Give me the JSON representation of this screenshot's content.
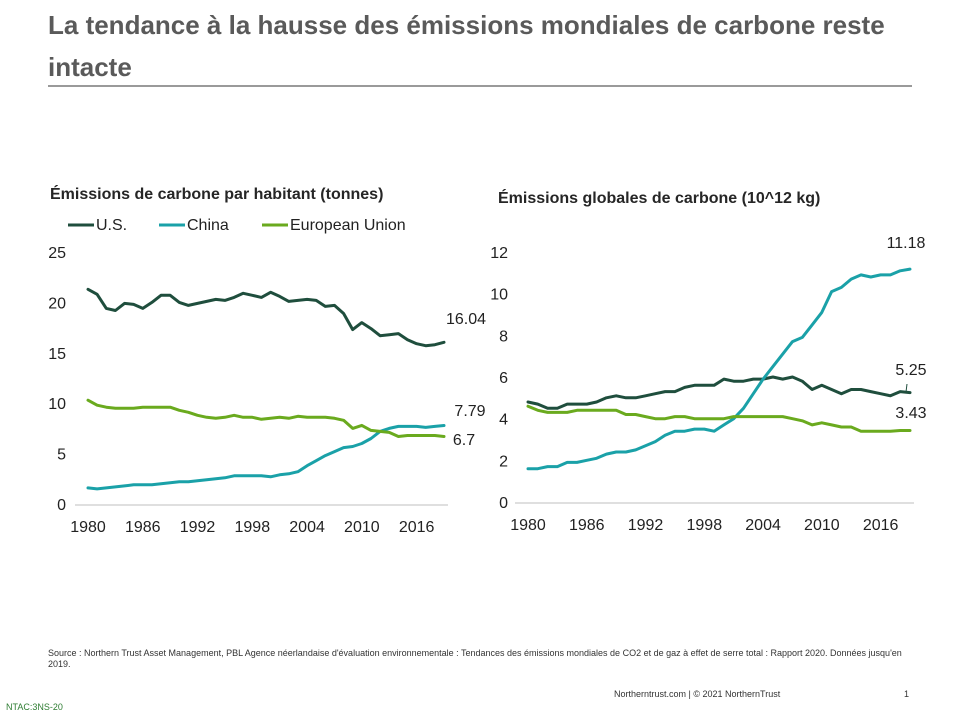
{
  "title": "La tendance à la hausse des émissions mondiales de carbone reste intacte",
  "colors": {
    "us": "#1f4e3d",
    "china": "#1aa1a8",
    "eu": "#6aaa1e"
  },
  "source": "Source : Northern Trust Asset Management, PBL  Agence néerlandaise d'évaluation environnementale : Tendances des émissions mondiales de CO2 et de gaz à effet de serre total : Rapport 2020. Données jusqu'en 2019.",
  "footer": "Northerntrust.com  |  © 2021 NorthernTrust",
  "page_number": "1",
  "code": "NTAC:3NS-20",
  "chart_data": [
    {
      "type": "line",
      "title": "Émissions de carbone par habitant (tonnes)",
      "x": [
        1980,
        1981,
        1982,
        1983,
        1984,
        1985,
        1986,
        1987,
        1988,
        1989,
        1990,
        1991,
        1992,
        1993,
        1994,
        1995,
        1996,
        1997,
        1998,
        1999,
        2000,
        2001,
        2002,
        2003,
        2004,
        2005,
        2006,
        2007,
        2008,
        2009,
        2010,
        2011,
        2012,
        2013,
        2014,
        2015,
        2016,
        2017,
        2018,
        2019
      ],
      "xticks": [
        "1980",
        "1986",
        "1992",
        "1998",
        "2004",
        "2010",
        "2016"
      ],
      "yticks": [
        "0",
        "5",
        "10",
        "15",
        "20",
        "25"
      ],
      "ylim": [
        0,
        25
      ],
      "legend": [
        "U.S.",
        "China",
        "European Union"
      ],
      "series": [
        {
          "name": "U.S.",
          "color": "#1f4e3d",
          "end_label": "16.04",
          "values": [
            21.3,
            20.8,
            19.4,
            19.2,
            19.9,
            19.8,
            19.4,
            20.0,
            20.7,
            20.7,
            20.0,
            19.7,
            19.9,
            20.1,
            20.3,
            20.2,
            20.5,
            20.9,
            20.7,
            20.5,
            21.0,
            20.6,
            20.1,
            20.2,
            20.3,
            20.2,
            19.6,
            19.7,
            18.9,
            17.3,
            18.0,
            17.4,
            16.7,
            16.8,
            16.9,
            16.3,
            15.9,
            15.7,
            15.8,
            16.04
          ]
        },
        {
          "name": "China",
          "color": "#1aa1a8",
          "end_label": "7.79",
          "values": [
            1.6,
            1.5,
            1.6,
            1.7,
            1.8,
            1.9,
            1.9,
            1.9,
            2.0,
            2.1,
            2.2,
            2.2,
            2.3,
            2.4,
            2.5,
            2.6,
            2.8,
            2.8,
            2.8,
            2.8,
            2.7,
            2.9,
            3.0,
            3.2,
            3.8,
            4.3,
            4.8,
            5.2,
            5.6,
            5.7,
            6.0,
            6.5,
            7.2,
            7.5,
            7.7,
            7.7,
            7.7,
            7.6,
            7.7,
            7.79
          ]
        },
        {
          "name": "European Union",
          "color": "#6aaa1e",
          "end_label": "6.7",
          "values": [
            10.3,
            9.8,
            9.6,
            9.5,
            9.5,
            9.5,
            9.6,
            9.6,
            9.6,
            9.6,
            9.3,
            9.1,
            8.8,
            8.6,
            8.5,
            8.6,
            8.8,
            8.6,
            8.6,
            8.4,
            8.5,
            8.6,
            8.5,
            8.7,
            8.6,
            8.6,
            8.6,
            8.5,
            8.3,
            7.5,
            7.8,
            7.3,
            7.2,
            7.1,
            6.7,
            6.8,
            6.8,
            6.8,
            6.8,
            6.7
          ]
        }
      ]
    },
    {
      "type": "line",
      "title": "Émissions globales de carbone (10^12 kg)",
      "x": [
        1980,
        1981,
        1982,
        1983,
        1984,
        1985,
        1986,
        1987,
        1988,
        1989,
        1990,
        1991,
        1992,
        1993,
        1994,
        1995,
        1996,
        1997,
        1998,
        1999,
        2000,
        2001,
        2002,
        2003,
        2004,
        2005,
        2006,
        2007,
        2008,
        2009,
        2010,
        2011,
        2012,
        2013,
        2014,
        2015,
        2016,
        2017,
        2018,
        2019
      ],
      "xticks": [
        "1980",
        "1986",
        "1992",
        "1998",
        "2004",
        "2010",
        "2016"
      ],
      "yticks": [
        "0",
        "2",
        "4",
        "6",
        "8",
        "10",
        "12"
      ],
      "ylim": [
        0,
        12
      ],
      "series": [
        {
          "name": "U.S.",
          "color": "#1f4e3d",
          "end_label": "5.25",
          "values": [
            4.8,
            4.7,
            4.5,
            4.5,
            4.7,
            4.7,
            4.7,
            4.8,
            5.0,
            5.1,
            5.0,
            5.0,
            5.1,
            5.2,
            5.3,
            5.3,
            5.5,
            5.6,
            5.6,
            5.6,
            5.9,
            5.8,
            5.8,
            5.9,
            5.9,
            6.0,
            5.9,
            6.0,
            5.8,
            5.4,
            5.6,
            5.4,
            5.2,
            5.4,
            5.4,
            5.3,
            5.2,
            5.1,
            5.3,
            5.25
          ]
        },
        {
          "name": "China",
          "color": "#1aa1a8",
          "end_label": "11.18",
          "values": [
            1.6,
            1.6,
            1.7,
            1.7,
            1.9,
            1.9,
            2.0,
            2.1,
            2.3,
            2.4,
            2.4,
            2.5,
            2.7,
            2.9,
            3.2,
            3.4,
            3.4,
            3.5,
            3.5,
            3.4,
            3.7,
            4.0,
            4.5,
            5.2,
            5.9,
            6.5,
            7.1,
            7.7,
            7.9,
            8.5,
            9.1,
            10.1,
            10.3,
            10.7,
            10.9,
            10.8,
            10.9,
            10.9,
            11.1,
            11.18
          ]
        },
        {
          "name": "European Union",
          "color": "#6aaa1e",
          "end_label": "3.43",
          "values": [
            4.6,
            4.4,
            4.3,
            4.3,
            4.3,
            4.4,
            4.4,
            4.4,
            4.4,
            4.4,
            4.2,
            4.2,
            4.1,
            4.0,
            4.0,
            4.1,
            4.1,
            4.0,
            4.0,
            4.0,
            4.0,
            4.1,
            4.1,
            4.1,
            4.1,
            4.1,
            4.1,
            4.0,
            3.9,
            3.7,
            3.8,
            3.7,
            3.6,
            3.6,
            3.4,
            3.4,
            3.4,
            3.4,
            3.43,
            3.43
          ]
        }
      ]
    }
  ]
}
